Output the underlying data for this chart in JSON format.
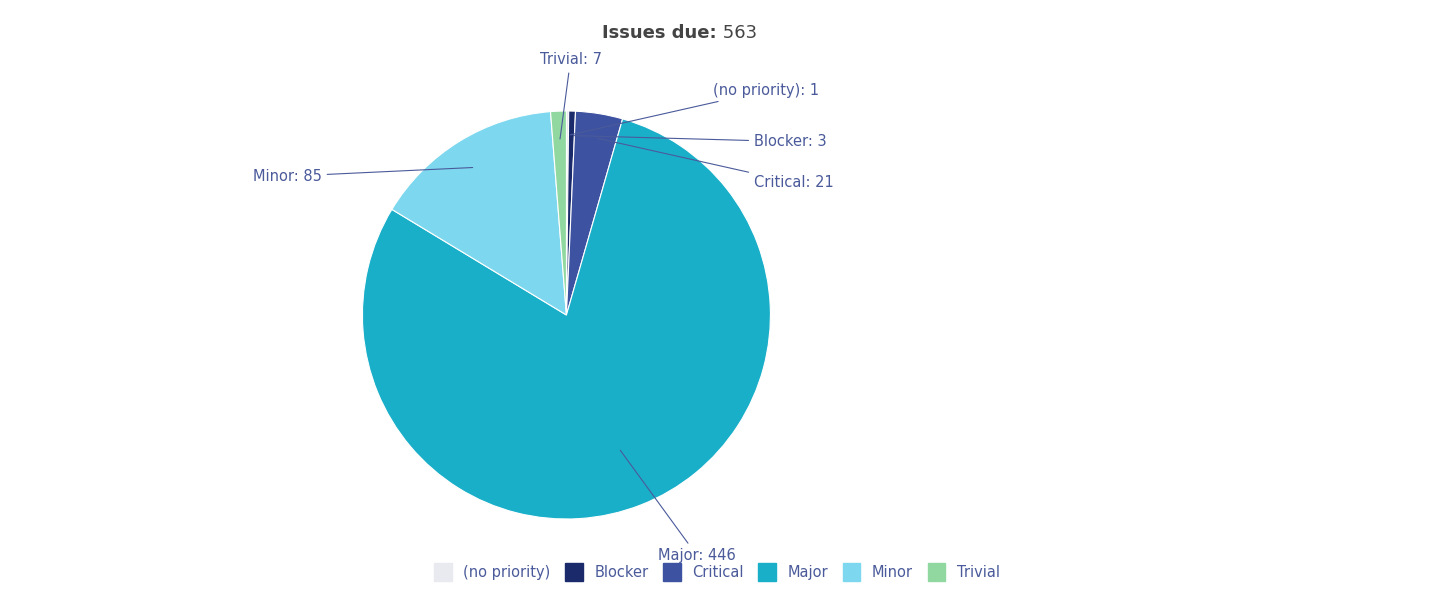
{
  "title_bold": "Issues due:",
  "title_value": " 563",
  "title_fontsize": 13,
  "title_color": "#444444",
  "slices": [
    {
      "label": "(no priority)",
      "value": 1,
      "color": "#e8eaf0"
    },
    {
      "label": "Blocker",
      "value": 3,
      "color": "#1b2a6b"
    },
    {
      "label": "Critical",
      "value": 21,
      "color": "#3d52a0"
    },
    {
      "label": "Major",
      "value": 446,
      "color": "#1aafc9"
    },
    {
      "label": "Minor",
      "value": 85,
      "color": "#7dd8ef"
    },
    {
      "label": "Trivial",
      "value": 7,
      "color": "#90d8a0"
    }
  ],
  "annotation_color": "#4a5a9a",
  "annotation_fontsize": 10.5,
  "legend_fontsize": 10.5,
  "background_color": "#ffffff",
  "startangle": 90
}
